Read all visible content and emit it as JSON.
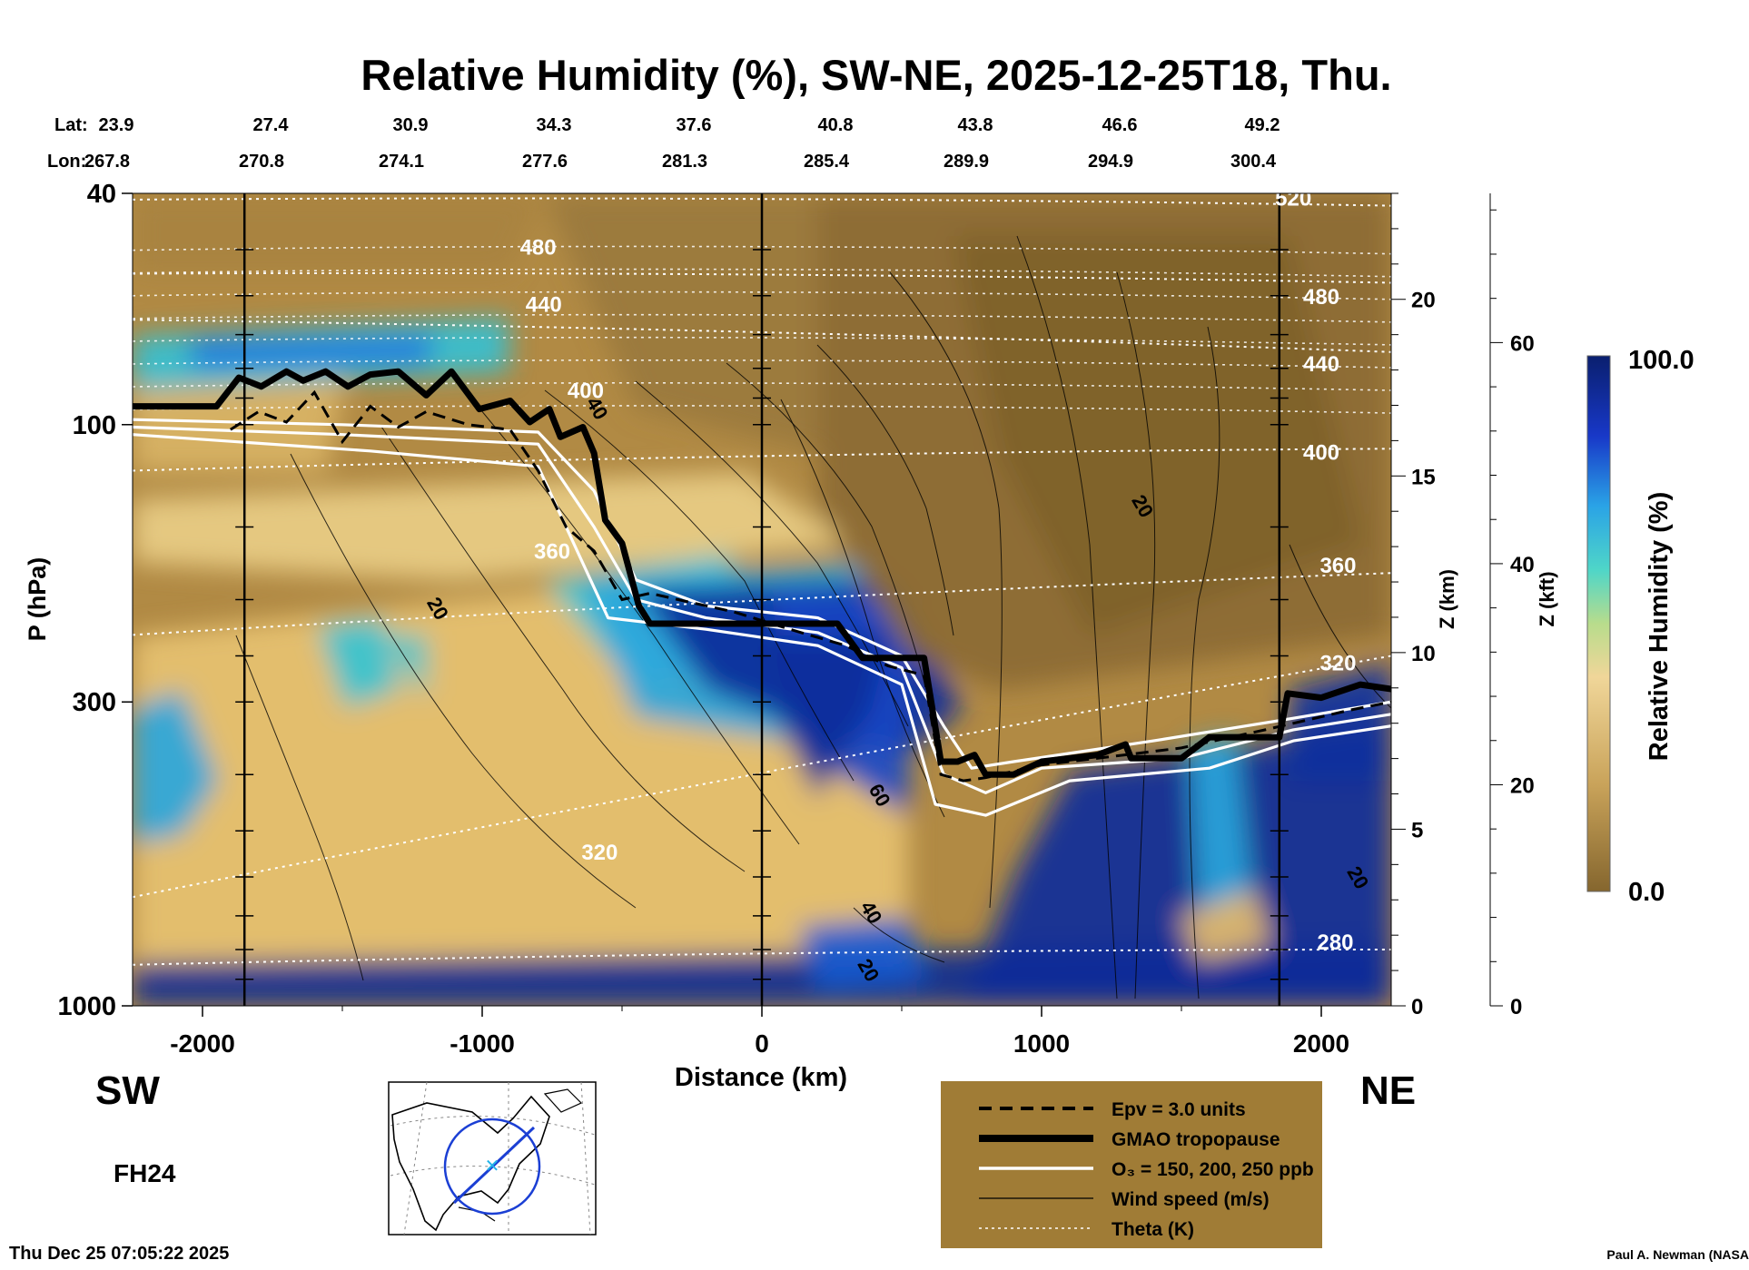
{
  "chart_data": {
    "type": "heatmap",
    "title": "Relative Humidity (%), SW-NE, 2025-12-25T18, Thu.",
    "xlabel": "Distance (km)",
    "ylabel": "P (hPa)",
    "xlim": [
      -2250,
      2250
    ],
    "x_ticks": [
      "-2000",
      "-1000",
      "0",
      "1000",
      "2000"
    ],
    "x_tick_values": [
      -2000,
      -1000,
      0,
      1000,
      2000
    ],
    "y_scale": "log",
    "ylim": [
      1000,
      40
    ],
    "y_ticks": [
      "40",
      "100",
      "300",
      "1000"
    ],
    "y_tick_values": [
      40,
      100,
      300,
      1000
    ],
    "z_km_label": "Z (km)",
    "z_km_ticks": [
      "0",
      "5",
      "10",
      "15",
      "20"
    ],
    "z_km_values": [
      0,
      5,
      10,
      15,
      20
    ],
    "z_kft_label": "Z (kft)",
    "z_kft_ticks": [
      "0",
      "20",
      "40",
      "60"
    ],
    "z_kft_values": [
      0,
      20,
      40,
      60
    ],
    "lat_label": "Lat:",
    "lon_label": "Lon:",
    "lat_values": [
      "23.9",
      "27.4",
      "30.9",
      "34.3",
      "37.6",
      "40.8",
      "43.8",
      "46.6",
      "49.2"
    ],
    "lon_values": [
      "267.8",
      "270.8",
      "274.1",
      "277.6",
      "281.3",
      "285.4",
      "289.9",
      "294.9",
      "300.4"
    ],
    "vertical_lines_km": [
      -1850,
      0,
      1850
    ],
    "left_end": "SW",
    "right_end": "NE",
    "colorbar": {
      "label": "Relative Humidity (%)",
      "max": "100.0",
      "min": "0.0"
    },
    "theta_levels": [
      {
        "label": "280",
        "p": [
          850,
          800
        ]
      },
      {
        "label": "320",
        "p": [
          650,
          250
        ]
      },
      {
        "label": "360",
        "p": [
          230,
          180
        ]
      },
      {
        "label": "400",
        "p": [
          120,
          110
        ]
      },
      {
        "label": "440",
        "p": [
          66,
          75
        ]
      },
      {
        "label": "480",
        "p": [
          55,
          57
        ]
      },
      {
        "label": "520",
        "p": [
          41,
          42
        ]
      }
    ],
    "theta_label_positions": [
      {
        "text": "480",
        "x": -800,
        "p": 51
      },
      {
        "text": "440",
        "x": -780,
        "p": 64
      },
      {
        "text": "400",
        "x": -630,
        "p": 90
      },
      {
        "text": "360",
        "x": -750,
        "p": 170
      },
      {
        "text": "320",
        "x": -580,
        "p": 560
      },
      {
        "text": "520",
        "x": 1900,
        "p": 42
      },
      {
        "text": "480",
        "x": 2000,
        "p": 62
      },
      {
        "text": "440",
        "x": 2000,
        "p": 81
      },
      {
        "text": "400",
        "x": 2000,
        "p": 115
      },
      {
        "text": "360",
        "x": 2060,
        "p": 180
      },
      {
        "text": "320",
        "x": 2060,
        "p": 265
      },
      {
        "text": "280",
        "x": 2050,
        "p": 800
      }
    ],
    "wind_labels": [
      {
        "text": "20",
        "x": -1180,
        "p": 210
      },
      {
        "text": "20",
        "x": 1340,
        "p": 140
      },
      {
        "text": "60",
        "x": 400,
        "p": 440
      },
      {
        "text": "40",
        "x": 370,
        "p": 700
      },
      {
        "text": "20",
        "x": 360,
        "p": 880
      },
      {
        "text": "20",
        "x": 2110,
        "p": 610
      },
      {
        "text": "40",
        "x": -610,
        "p": 95
      }
    ],
    "tropopause": [
      [
        -2250,
        93
      ],
      [
        -1950,
        93
      ],
      [
        -1870,
        83
      ],
      [
        -1790,
        86
      ],
      [
        -1700,
        81
      ],
      [
        -1640,
        84
      ],
      [
        -1560,
        81
      ],
      [
        -1480,
        86
      ],
      [
        -1400,
        82
      ],
      [
        -1300,
        81
      ],
      [
        -1200,
        89
      ],
      [
        -1110,
        81
      ],
      [
        -1010,
        94
      ],
      [
        -900,
        91
      ],
      [
        -830,
        99
      ],
      [
        -760,
        94
      ],
      [
        -720,
        105
      ],
      [
        -640,
        101
      ],
      [
        -600,
        112
      ],
      [
        -560,
        146
      ],
      [
        -500,
        160
      ],
      [
        -440,
        205
      ],
      [
        -400,
        220
      ],
      [
        0,
        220
      ],
      [
        270,
        220
      ],
      [
        360,
        252
      ],
      [
        580,
        252
      ],
      [
        640,
        380
      ],
      [
        700,
        380
      ],
      [
        760,
        370
      ],
      [
        800,
        400
      ],
      [
        900,
        400
      ],
      [
        1000,
        380
      ],
      [
        1200,
        370
      ],
      [
        1300,
        355
      ],
      [
        1320,
        375
      ],
      [
        1500,
        375
      ],
      [
        1600,
        345
      ],
      [
        1850,
        345
      ],
      [
        1880,
        290
      ],
      [
        2000,
        295
      ],
      [
        2140,
        280
      ],
      [
        2250,
        285
      ]
    ],
    "epv": [
      [
        -1900,
        102
      ],
      [
        -1800,
        95
      ],
      [
        -1700,
        99
      ],
      [
        -1600,
        88
      ],
      [
        -1500,
        107
      ],
      [
        -1400,
        93
      ],
      [
        -1300,
        101
      ],
      [
        -1200,
        95
      ],
      [
        -1050,
        100
      ],
      [
        -900,
        102
      ],
      [
        -800,
        120
      ],
      [
        -700,
        150
      ],
      [
        -600,
        165
      ],
      [
        -500,
        200
      ],
      [
        -400,
        195
      ],
      [
        -300,
        200
      ],
      [
        -100,
        210
      ],
      [
        100,
        225
      ],
      [
        300,
        240
      ],
      [
        450,
        260
      ],
      [
        580,
        270
      ],
      [
        640,
        400
      ],
      [
        720,
        410
      ],
      [
        800,
        405
      ],
      [
        1000,
        385
      ],
      [
        1200,
        375
      ],
      [
        1500,
        360
      ],
      [
        1800,
        335
      ],
      [
        2100,
        310
      ],
      [
        2250,
        300
      ]
    ],
    "ozone": [
      {
        "label": "150",
        "points": [
          [
            -2250,
            98
          ],
          [
            -1500,
            100
          ],
          [
            -800,
            103
          ],
          [
            -600,
            130
          ],
          [
            -450,
            185
          ],
          [
            -200,
            205
          ],
          [
            200,
            215
          ],
          [
            500,
            250
          ],
          [
            650,
            330
          ],
          [
            750,
            390
          ],
          [
            900,
            380
          ],
          [
            1400,
            350
          ],
          [
            1900,
            320
          ],
          [
            2250,
            300
          ]
        ]
      },
      {
        "label": "200",
        "points": [
          [
            -2250,
            101
          ],
          [
            -1500,
            104
          ],
          [
            -800,
            108
          ],
          [
            -600,
            150
          ],
          [
            -450,
            200
          ],
          [
            -200,
            215
          ],
          [
            200,
            228
          ],
          [
            500,
            262
          ],
          [
            650,
            400
          ],
          [
            800,
            430
          ],
          [
            1000,
            390
          ],
          [
            1500,
            375
          ],
          [
            1900,
            335
          ],
          [
            2250,
            315
          ]
        ]
      },
      {
        "label": "250",
        "points": [
          [
            -2250,
            104
          ],
          [
            -1400,
            111
          ],
          [
            -800,
            118
          ],
          [
            -700,
            150
          ],
          [
            -550,
            215
          ],
          [
            -200,
            225
          ],
          [
            200,
            240
          ],
          [
            500,
            280
          ],
          [
            620,
            450
          ],
          [
            800,
            470
          ],
          [
            1100,
            410
          ],
          [
            1600,
            390
          ],
          [
            1900,
            350
          ],
          [
            2250,
            330
          ]
        ]
      }
    ],
    "legend": {
      "placement": "bottom-right",
      "items": [
        {
          "label": "Epv = 3.0 units",
          "style": "dashed-black"
        },
        {
          "label": "GMAO tropopause",
          "style": "thick-black"
        },
        {
          "label": "O₃ = 150, 200, 250 ppb",
          "style": "white"
        },
        {
          "label": "Wind speed (m/s)",
          "style": "thin-black"
        },
        {
          "label": "Theta (K)",
          "style": "dotted-white"
        }
      ]
    }
  },
  "footer": {
    "forecast_hour": "FH24",
    "timestamp": "Thu Dec 25 07:05:22 2025",
    "credit": "Paul A. Newman (NASA"
  },
  "colors": {
    "rh_low": "#8a6a32",
    "rh_mid": "#e9c679",
    "rh_cyan": "#37c4d2",
    "rh_high": "#07298a",
    "legend_bg": "#a07c36"
  }
}
